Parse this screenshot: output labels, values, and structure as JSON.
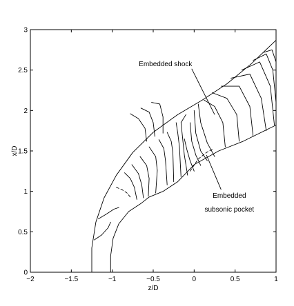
{
  "chart_data": {
    "type": "line",
    "title": "",
    "xlabel": "z/D",
    "ylabel": "x/D",
    "xlim": [
      -2,
      1
    ],
    "ylim": [
      0,
      3
    ],
    "xticks": [
      -2,
      -1.5,
      -1,
      -0.5,
      0,
      0.5,
      1
    ],
    "xtick_labels": [
      "−2",
      "−1.5",
      "−1",
      "−0.5",
      "0",
      "0.5",
      "1"
    ],
    "yticks": [
      0,
      0.5,
      1,
      1.5,
      2,
      2.5,
      3
    ],
    "ytick_labels": [
      "0",
      "0.5",
      "1",
      "1.5",
      "2",
      "2.5",
      "3"
    ],
    "grid": false,
    "legend": "none",
    "annotations": [
      {
        "text": "Embedded shock",
        "x": -0.35,
        "y": 2.55,
        "arrow_to": [
          0.25,
          1.95
        ]
      },
      {
        "text": "Embedded",
        "x": 0.43,
        "y": 0.92,
        "arrow_to": [
          0.15,
          1.45
        ]
      },
      {
        "text": "subsonic pocket",
        "x": 0.43,
        "y": 0.75
      }
    ],
    "series": [
      {
        "role": "outer-shock",
        "style": "solid",
        "x": [
          -1.25,
          -1.25,
          -1.2,
          -1.1,
          -0.95,
          -0.75,
          -0.5,
          -0.2,
          0.1,
          0.4,
          0.7,
          1.0
        ],
        "y": [
          0.0,
          0.3,
          0.62,
          0.92,
          1.2,
          1.48,
          1.73,
          1.95,
          2.13,
          2.33,
          2.58,
          2.87
        ]
      },
      {
        "role": "wall",
        "style": "solid",
        "x": [
          -1.02,
          -1.02,
          -0.99,
          -0.92,
          -0.8,
          -0.65,
          -0.55,
          -0.38,
          -0.2,
          0.0,
          0.3,
          0.6,
          1.0
        ],
        "y": [
          0.0,
          0.2,
          0.42,
          0.6,
          0.75,
          0.85,
          0.93,
          1.0,
          1.12,
          1.33,
          1.5,
          1.62,
          1.82
        ]
      },
      {
        "role": "contour",
        "style": "solid",
        "x": [
          -1.22,
          -1.13,
          -1.05,
          -1.02
        ],
        "y": [
          0.4,
          0.46,
          0.55,
          0.62
        ]
      },
      {
        "role": "contour",
        "style": "solid",
        "x": [
          -1.17,
          -1.07,
          -0.98,
          -0.92
        ],
        "y": [
          0.66,
          0.72,
          0.78,
          0.8
        ]
      },
      {
        "role": "contour",
        "style": "dashed",
        "x": [
          -0.95,
          -0.88,
          -0.82,
          -0.78
        ],
        "y": [
          1.05,
          1.02,
          0.98,
          0.93
        ]
      },
      {
        "role": "contour",
        "style": "solid",
        "x": [
          -0.85,
          -0.78,
          -0.73,
          -0.7
        ],
        "y": [
          1.23,
          1.16,
          1.05,
          0.9
        ]
      },
      {
        "role": "contour",
        "style": "solid",
        "x": [
          -0.76,
          -0.68,
          -0.64,
          -0.62
        ],
        "y": [
          1.33,
          1.22,
          1.08,
          0.92
        ]
      },
      {
        "role": "contour",
        "style": "solid",
        "x": [
          -0.66,
          -0.58,
          -0.55,
          -0.56
        ],
        "y": [
          1.43,
          1.32,
          1.16,
          0.94
        ]
      },
      {
        "role": "contour",
        "style": "solid",
        "x": [
          -0.55,
          -0.47,
          -0.45,
          -0.47
        ],
        "y": [
          1.55,
          1.43,
          1.26,
          0.98
        ]
      },
      {
        "role": "contour",
        "style": "solid",
        "x": [
          -0.43,
          -0.37,
          -0.35,
          -0.33
        ],
        "y": [
          1.64,
          1.53,
          1.38,
          1.08
        ]
      },
      {
        "role": "contour",
        "style": "solid",
        "x": [
          -0.33,
          -0.28,
          -0.26,
          -0.25
        ],
        "y": [
          1.73,
          1.62,
          1.48,
          1.12
        ]
      },
      {
        "role": "contour",
        "style": "solid",
        "x": [
          -0.22,
          -0.2,
          -0.18,
          -0.16
        ],
        "y": [
          1.85,
          1.72,
          1.55,
          1.18
        ]
      },
      {
        "role": "contour",
        "style": "solid",
        "x": [
          -0.1,
          -0.16,
          -0.14,
          -0.12,
          -0.08
        ],
        "y": [
          1.95,
          1.85,
          1.65,
          1.45,
          1.2
        ]
      },
      {
        "role": "contour",
        "style": "solid",
        "x": [
          -0.12,
          -0.09,
          -0.05,
          0.0
        ],
        "y": [
          1.65,
          1.52,
          1.38,
          1.25
        ]
      },
      {
        "role": "contour",
        "style": "solid",
        "x": [
          -0.05,
          -0.03,
          0.02,
          0.08
        ],
        "y": [
          1.85,
          1.62,
          1.45,
          1.32
        ]
      },
      {
        "role": "contour",
        "style": "solid",
        "x": [
          0.0,
          0.02,
          0.08,
          0.16
        ],
        "y": [
          2.0,
          1.72,
          1.5,
          1.38
        ]
      },
      {
        "role": "contour",
        "style": "solid",
        "x": [
          0.05,
          0.08,
          0.16,
          0.25
        ],
        "y": [
          2.08,
          1.85,
          1.6,
          1.43
        ]
      },
      {
        "role": "contour",
        "style": "dashed",
        "x": [
          -0.05,
          0.05,
          0.15,
          0.22
        ],
        "y": [
          1.25,
          1.4,
          1.48,
          1.52
        ]
      },
      {
        "role": "contour",
        "style": "solid",
        "x": [
          0.12,
          0.25,
          0.35,
          0.38
        ],
        "y": [
          2.13,
          2.05,
          1.85,
          1.55
        ]
      },
      {
        "role": "contour",
        "style": "solid",
        "x": [
          0.22,
          0.4,
          0.52,
          0.55
        ],
        "y": [
          2.22,
          2.15,
          1.95,
          1.62
        ]
      },
      {
        "role": "contour",
        "style": "solid",
        "x": [
          0.33,
          0.55,
          0.68,
          0.72
        ],
        "y": [
          2.3,
          2.3,
          2.05,
          1.68
        ]
      },
      {
        "role": "contour",
        "style": "solid",
        "x": [
          0.45,
          0.68,
          0.82,
          0.88
        ],
        "y": [
          2.4,
          2.45,
          2.15,
          1.75
        ]
      },
      {
        "role": "contour",
        "style": "solid",
        "x": [
          0.58,
          0.8,
          0.93,
          0.98
        ],
        "y": [
          2.5,
          2.6,
          2.3,
          1.82
        ]
      },
      {
        "role": "contour",
        "style": "solid",
        "x": [
          0.72,
          0.88,
          0.96,
          1.0
        ],
        "y": [
          2.62,
          2.7,
          2.5,
          2.1
        ]
      },
      {
        "role": "contour",
        "style": "solid",
        "x": [
          0.85,
          0.95,
          1.0
        ],
        "y": [
          2.72,
          2.75,
          2.6
        ]
      },
      {
        "role": "contour",
        "style": "solid",
        "x": [
          -0.78,
          -0.68,
          -0.6,
          -0.58
        ],
        "y": [
          1.96,
          1.9,
          1.78,
          1.62
        ]
      },
      {
        "role": "contour",
        "style": "solid",
        "x": [
          -0.65,
          -0.55,
          -0.5,
          -0.48
        ],
        "y": [
          2.03,
          1.98,
          1.85,
          1.68
        ]
      },
      {
        "role": "contour",
        "style": "solid",
        "x": [
          -0.52,
          -0.42,
          -0.38,
          -0.38
        ],
        "y": [
          2.1,
          2.08,
          1.92,
          1.72
        ]
      }
    ]
  }
}
